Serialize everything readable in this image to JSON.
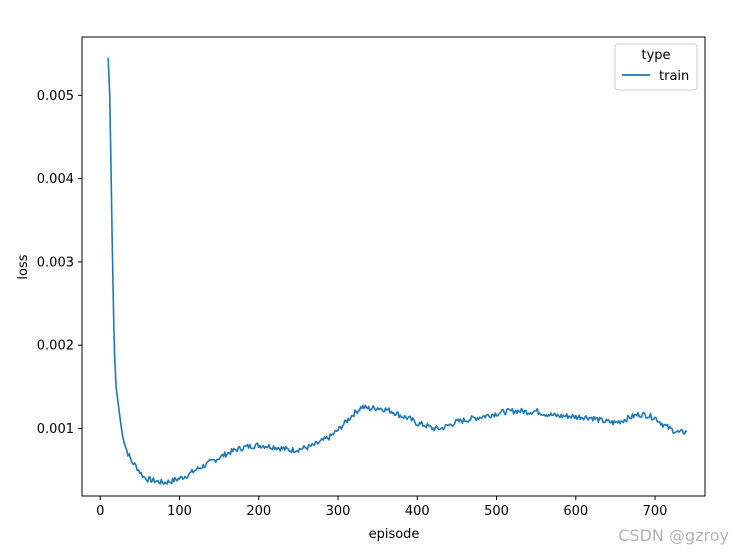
{
  "watermark": "CSDN @gzroy",
  "colors": {
    "series": "#1f77b4",
    "axes": "#000000",
    "legend_border": "#cccccc"
  },
  "chart_data": {
    "type": "line",
    "title": "",
    "xlabel": "episode",
    "ylabel": "loss",
    "xlim": [
      -23,
      763
    ],
    "ylim": [
      0.00019,
      0.0057
    ],
    "xticks": [
      0,
      100,
      200,
      300,
      400,
      500,
      600,
      700
    ],
    "xtick_labels": [
      "0",
      "100",
      "200",
      "300",
      "400",
      "500",
      "600",
      "700"
    ],
    "yticks": [
      0.001,
      0.002,
      0.003,
      0.004,
      0.005
    ],
    "ytick_labels": [
      "0.001",
      "0.002",
      "0.003",
      "0.004",
      "0.005"
    ],
    "grid": false,
    "legend": {
      "title": "type",
      "position": "top-right",
      "entries": [
        "train"
      ]
    },
    "series": [
      {
        "name": "train",
        "color": "#1f77b4",
        "x": [
          10,
          12,
          14,
          15,
          16,
          17,
          18,
          20,
          22,
          24,
          26,
          28,
          30,
          32,
          35,
          38,
          40,
          45,
          50,
          55,
          60,
          70,
          80,
          90,
          100,
          110,
          120,
          130,
          140,
          150,
          160,
          170,
          180,
          190,
          200,
          210,
          220,
          230,
          240,
          250,
          260,
          270,
          280,
          290,
          300,
          310,
          320,
          330,
          340,
          350,
          360,
          370,
          380,
          390,
          400,
          410,
          420,
          430,
          440,
          450,
          460,
          470,
          480,
          490,
          500,
          510,
          520,
          530,
          540,
          550,
          560,
          570,
          580,
          590,
          600,
          610,
          620,
          630,
          640,
          650,
          660,
          670,
          680,
          690,
          700,
          710,
          720,
          730,
          740
        ],
        "y": [
          0.00545,
          0.005,
          0.0039,
          0.0033,
          0.0028,
          0.0023,
          0.0019,
          0.0015,
          0.00135,
          0.0012,
          0.00105,
          0.00095,
          0.00085,
          0.00078,
          0.0007,
          0.00064,
          0.0006,
          0.00055,
          0.00048,
          0.00042,
          0.00039,
          0.00037,
          0.00035,
          0.00037,
          0.0004,
          0.00044,
          0.0005,
          0.00055,
          0.0006,
          0.00065,
          0.0007,
          0.00074,
          0.00077,
          0.00079,
          0.0008,
          0.00079,
          0.00078,
          0.00076,
          0.00074,
          0.00075,
          0.00077,
          0.0008,
          0.00085,
          0.0009,
          0.00098,
          0.00108,
          0.00118,
          0.00126,
          0.00124,
          0.00125,
          0.00123,
          0.0012,
          0.00115,
          0.00112,
          0.00106,
          0.00104,
          0.001,
          0.001,
          0.00104,
          0.00108,
          0.0011,
          0.00112,
          0.00114,
          0.00116,
          0.00118,
          0.0012,
          0.00121,
          0.00121,
          0.0012,
          0.00121,
          0.00118,
          0.00116,
          0.00115,
          0.00115,
          0.00114,
          0.00114,
          0.00113,
          0.0011,
          0.00108,
          0.00107,
          0.0011,
          0.00114,
          0.00117,
          0.00116,
          0.00113,
          0.00105,
          0.00099,
          0.00095,
          0.00096
        ]
      }
    ]
  }
}
